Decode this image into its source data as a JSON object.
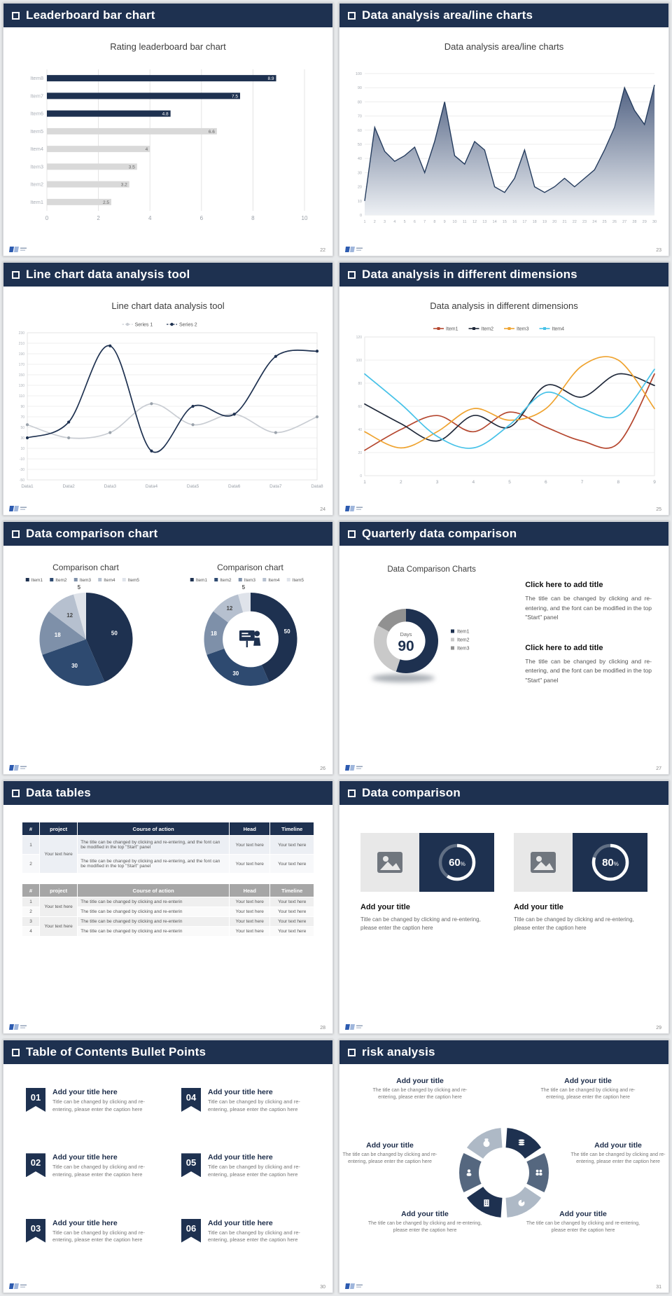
{
  "theme": {
    "navy": "#1e3150",
    "gray_bar": "#d9d9d9",
    "page_bg": "#e7e9eb"
  },
  "chart_data": [
    {
      "type": "bar",
      "orientation": "horizontal",
      "title": "Rating leaderboard bar chart",
      "categories": [
        "Item1",
        "Item2",
        "Item3",
        "Item4",
        "Item5",
        "Item6",
        "Item7",
        "Item8"
      ],
      "values": [
        2.5,
        3.2,
        3.5,
        4,
        6.6,
        4.8,
        7.5,
        8.9
      ],
      "colors": [
        "#d9d9d9",
        "#d9d9d9",
        "#d9d9d9",
        "#d9d9d9",
        "#d9d9d9",
        "#1e3150",
        "#1e3150",
        "#1e3150"
      ],
      "xticks": [
        0,
        2,
        4,
        6,
        8,
        10
      ],
      "xlim": [
        0,
        10
      ]
    },
    {
      "type": "area",
      "title": "Data analysis area/line charts",
      "x": [
        1,
        2,
        3,
        4,
        5,
        6,
        7,
        8,
        9,
        10,
        11,
        12,
        13,
        14,
        15,
        16,
        17,
        18,
        19,
        20,
        21,
        22,
        23,
        24,
        25,
        26,
        27,
        28,
        29,
        30
      ],
      "values": [
        10,
        62,
        45,
        38,
        42,
        48,
        30,
        52,
        80,
        42,
        36,
        52,
        46,
        20,
        16,
        26,
        46,
        20,
        16,
        20,
        26,
        20,
        26,
        32,
        46,
        62,
        90,
        74,
        64,
        92
      ],
      "ylim": [
        0,
        100
      ],
      "ystep": 10,
      "line_color": "#253c5e",
      "fill_top": "#506182",
      "fill_bottom": "#edf0f4"
    },
    {
      "type": "line",
      "title": "Line chart data analysis tool",
      "categories": [
        "Data1",
        "Data2",
        "Data3",
        "Data4",
        "Data5",
        "Data6",
        "Data7",
        "Data8"
      ],
      "ylim": [
        -50,
        230
      ],
      "ystep": 20,
      "markers": true,
      "legend": true,
      "series": [
        {
          "name": "Series 1",
          "color": "#c9cdd3",
          "marker_color": "#9aa2ab",
          "values": [
            55,
            30,
            40,
            95,
            55,
            75,
            40,
            70
          ]
        },
        {
          "name": "Series 2",
          "color": "#1e3150",
          "values": [
            30,
            60,
            205,
            5,
            90,
            75,
            185,
            195
          ]
        }
      ]
    },
    {
      "type": "line",
      "title": "Data analysis in different dimensions",
      "categories": [
        "1",
        "2",
        "3",
        "4",
        "5",
        "6",
        "7",
        "8",
        "9"
      ],
      "ylim": [
        0,
        120
      ],
      "ystep": 20,
      "markers": false,
      "legend": true,
      "series": [
        {
          "name": "Item1",
          "color": "#b5472f",
          "values": [
            22,
            40,
            52,
            38,
            55,
            42,
            30,
            28,
            88
          ]
        },
        {
          "name": "Item2",
          "color": "#20293a",
          "values": [
            62,
            45,
            30,
            52,
            42,
            78,
            68,
            88,
            78
          ]
        },
        {
          "name": "Item3",
          "color": "#efa32f",
          "values": [
            38,
            24,
            38,
            58,
            48,
            58,
            95,
            100,
            58
          ]
        },
        {
          "name": "Item4",
          "color": "#47c2e8",
          "values": [
            88,
            62,
            34,
            24,
            44,
            72,
            58,
            52,
            92
          ]
        }
      ]
    },
    {
      "type": "pie",
      "title": "Comparison chart",
      "labels": [
        "Item1",
        "Item2",
        "Item3",
        "Item4",
        "Item5"
      ],
      "values": [
        50,
        30,
        18,
        12,
        5
      ],
      "colors": [
        "#1e3150",
        "#2e4a70",
        "#7e90a9",
        "#b6c0cf",
        "#dfe3ea"
      ],
      "value_labels": true,
      "legend": "top"
    },
    {
      "type": "donut",
      "title": "Comparison chart",
      "labels": [
        "Item1",
        "Item2",
        "Item3",
        "Item4",
        "Item5"
      ],
      "values": [
        50,
        30,
        18,
        12,
        5
      ],
      "colors": [
        "#1e3150",
        "#2e4a70",
        "#7e90a9",
        "#b6c0cf",
        "#dfe3ea"
      ],
      "value_labels": true,
      "legend": "top",
      "center_icon": "presenter"
    },
    {
      "type": "donut",
      "title": "Data Comparison Charts",
      "labels": [
        "Item1",
        "Item2",
        "Item3"
      ],
      "values": [
        55,
        28,
        17
      ],
      "colors": [
        "#1e3150",
        "#c9c9c9",
        "#919191"
      ],
      "center_top": "Days",
      "center_value": "90",
      "legend": "right",
      "shadow": true
    },
    {
      "type": "progress",
      "percent": 60
    },
    {
      "type": "progress",
      "percent": 80
    },
    {
      "type": "wheel",
      "colors": [
        "#1e3150",
        "#55677f",
        "#aeb9c6",
        "#1e3150",
        "#55677f",
        "#aeb9c6"
      ],
      "icons": [
        "coins",
        "people",
        "pie",
        "building",
        "user",
        "moneybag"
      ]
    }
  ],
  "slides": {
    "s1": {
      "header": "Leaderboard bar chart",
      "page": "22"
    },
    "s2": {
      "header": "Data analysis area/line charts",
      "page": "23"
    },
    "s3": {
      "header": "Line chart data analysis tool",
      "page": "24"
    },
    "s4": {
      "header": "Data analysis in different dimensions",
      "page": "25"
    },
    "s5": {
      "header": "Data comparison chart",
      "page": "26"
    },
    "s6": {
      "header": "Quarterly data comparison",
      "page": "27",
      "blocks": [
        {
          "title": "Click here to add title",
          "body": "The title can be changed by clicking and re-entering, and the font can be modified in the top \"Start\" panel"
        },
        {
          "title": "Click here to add title",
          "body": "The title can be changed by clicking and re-entering, and the font can be modified in the top \"Start\" panel"
        }
      ]
    },
    "s7": {
      "header": "Data tables",
      "page": "28",
      "table1": {
        "headers": [
          "#",
          "project",
          "Course of action",
          "Head",
          "Timeline"
        ],
        "project": "Your text here",
        "rows": [
          {
            "num": "1",
            "action": "The title can be changed by clicking and re-entering, and the font can be modified in the top \"Start\" panel",
            "head": "Your text here",
            "timeline": "Your text here"
          },
          {
            "num": "2",
            "action": "The title can be changed by clicking and re-entering, and the font can be modified in the top \"Start\" panel",
            "head": "Your text here",
            "timeline": "Your text here"
          }
        ]
      },
      "table2": {
        "headers": [
          "#",
          "project",
          "Course of action",
          "Head",
          "Timeline"
        ],
        "projects": [
          "Your text here",
          "Your text here"
        ],
        "rows": [
          {
            "num": "1",
            "action": "The title can be changed by clicking and re-enterin",
            "head": "Your text here",
            "timeline": "Your text here"
          },
          {
            "num": "2",
            "action": "The title can be changed by clicking and re-enterin",
            "head": "Your text here",
            "timeline": "Your text here"
          },
          {
            "num": "3",
            "action": "The title can be changed by clicking and re-enterin",
            "head": "Your text here",
            "timeline": "Your text here"
          },
          {
            "num": "4",
            "action": "The title can be changed by clicking and re-enterin",
            "head": "Your text here",
            "timeline": "Your text here"
          }
        ]
      }
    },
    "s8": {
      "header": "Data comparison",
      "page": "29",
      "cards": [
        {
          "percent": "60",
          "title": "Add your title",
          "caption": "Title can be changed by clicking and re-entering, please enter the caption here"
        },
        {
          "percent": "80",
          "title": "Add your title",
          "caption": "Title can be changed by clicking and re-entering, please enter the caption here"
        }
      ]
    },
    "s9": {
      "header": "Table of Contents Bullet Points",
      "page": "30",
      "items": [
        {
          "num": "01",
          "title": "Add your title here",
          "caption": "Title can be changed by clicking and re-entering, please enter the caption here"
        },
        {
          "num": "02",
          "title": "Add your title here",
          "caption": "Title can be changed by clicking and re-entering, please enter the caption here"
        },
        {
          "num": "03",
          "title": "Add your title here",
          "caption": "Title can be changed by clicking and re-entering, please enter the caption here"
        },
        {
          "num": "04",
          "title": "Add your title here",
          "caption": "Title can be changed by clicking and re-entering, please enter the caption here"
        },
        {
          "num": "05",
          "title": "Add your title here",
          "caption": "Title can be changed by clicking and re-entering, please enter the caption here"
        },
        {
          "num": "06",
          "title": "Add your title here",
          "caption": "Title can be changed by clicking and re-entering, please enter the caption here"
        }
      ]
    },
    "s10": {
      "header": "risk analysis",
      "page": "31",
      "blocks": [
        {
          "title": "Add your title",
          "caption": "The title can be changed by clicking and re-entering, please enter the caption here"
        },
        {
          "title": "Add your title",
          "caption": "The title can be changed by clicking and re-entering, please enter the caption here"
        },
        {
          "title": "Add your title",
          "caption": "The title can be changed by clicking and re-entering, please enter the caption here"
        },
        {
          "title": "Add your title",
          "caption": "The title can be changed by clicking and re-entering, please enter the caption here"
        },
        {
          "title": "Add your title",
          "caption": "The title can be changed by clicking and re-entering, please enter the caption here"
        },
        {
          "title": "Add your title",
          "caption": "The title can be changed by clicking and re-entering, please enter the caption here"
        }
      ]
    }
  }
}
